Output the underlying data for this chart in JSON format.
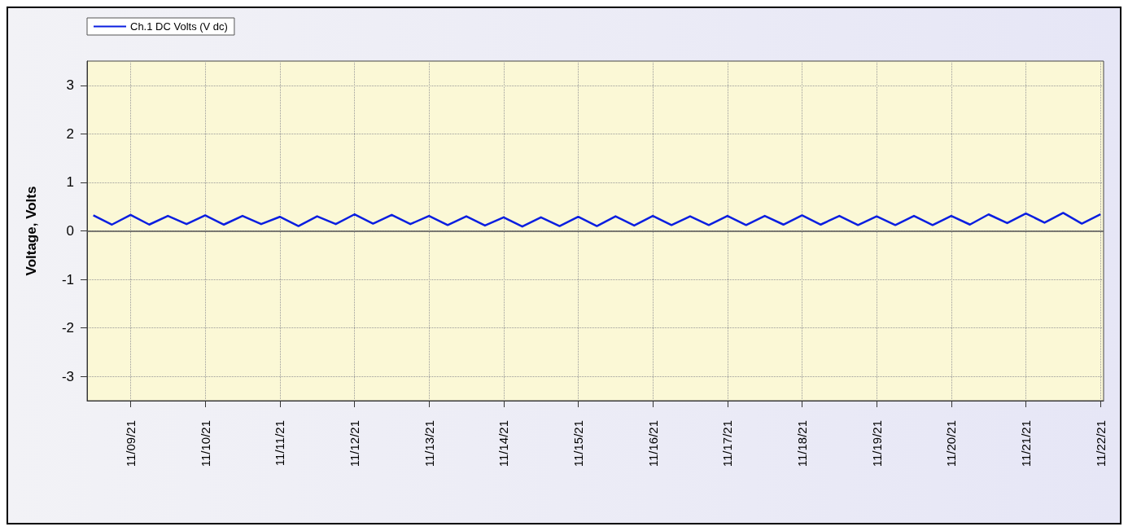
{
  "chart_data": {
    "type": "line",
    "ylabel": "Voltage, Volts",
    "x": [
      "--11-08T12:00",
      "--11-08T18:00",
      "--11-09T00:00",
      "--11-09T06:00",
      "--11-09T12:00",
      "--11-09T18:00",
      "--11-10T00:00",
      "--11-10T06:00",
      "--11-10T12:00",
      "--11-10T18:00",
      "--11-11T00:00",
      "--11-11T06:00",
      "--11-11T12:00",
      "--11-11T18:00",
      "--11-12T00:00",
      "--11-12T06:00",
      "--11-12T12:00",
      "--11-12T18:00",
      "--11-13T00:00",
      "--11-13T06:00",
      "--11-13T12:00",
      "--11-13T18:00",
      "--11-14T00:00",
      "--11-14T06:00",
      "--11-14T12:00",
      "--11-14T18:00",
      "--11-15T00:00",
      "--11-15T06:00",
      "--11-15T12:00",
      "--11-15T18:00",
      "--11-16T00:00",
      "--11-16T06:00",
      "--11-16T12:00",
      "--11-16T18:00",
      "--11-17T00:00",
      "--11-17T06:00",
      "--11-17T12:00",
      "--11-17T18:00",
      "--11-18T00:00",
      "--11-18T06:00",
      "--11-18T12:00",
      "--11-18T18:00",
      "--11-19T00:00",
      "--11-19T06:00",
      "--11-19T12:00",
      "--11-19T18:00",
      "--11-20T00:00",
      "--11-20T06:00",
      "--11-20T12:00",
      "--11-20T18:00",
      "--11-21T00:00",
      "--11-21T06:00",
      "--11-21T12:00",
      "--11-21T18:00",
      "--11-22T00:00"
    ],
    "series": [
      {
        "name": "Ch.1 DC Volts (V dc)",
        "color": "#0a1ee0",
        "values": [
          0.32,
          0.13,
          0.33,
          0.13,
          0.31,
          0.14,
          0.32,
          0.13,
          0.31,
          0.14,
          0.29,
          0.1,
          0.3,
          0.14,
          0.34,
          0.15,
          0.33,
          0.14,
          0.31,
          0.12,
          0.3,
          0.11,
          0.28,
          0.09,
          0.28,
          0.1,
          0.29,
          0.1,
          0.3,
          0.11,
          0.31,
          0.12,
          0.3,
          0.12,
          0.31,
          0.12,
          0.31,
          0.13,
          0.32,
          0.13,
          0.31,
          0.12,
          0.3,
          0.12,
          0.31,
          0.12,
          0.31,
          0.13,
          0.34,
          0.16,
          0.36,
          0.17,
          0.37,
          0.15,
          0.34
        ]
      }
    ],
    "xlim": [
      "--11-08T10:00",
      "--11-22T01:00"
    ],
    "xticks": [
      {
        "value": "--11-09",
        "label": "11/09/21"
      },
      {
        "value": "--11-10",
        "label": "11/10/21"
      },
      {
        "value": "--11-11",
        "label": "11/11/21"
      },
      {
        "value": "--11-12",
        "label": "11/12/21"
      },
      {
        "value": "--11-13",
        "label": "11/13/21"
      },
      {
        "value": "--11-14",
        "label": "11/14/21"
      },
      {
        "value": "--11-15",
        "label": "11/15/21"
      },
      {
        "value": "--11-16",
        "label": "11/16/21"
      },
      {
        "value": "--11-17",
        "label": "11/17/21"
      },
      {
        "value": "--11-18",
        "label": "11/18/21"
      },
      {
        "value": "--11-19",
        "label": "11/19/21"
      },
      {
        "value": "--11-20",
        "label": "11/20/21"
      },
      {
        "value": "--11-21",
        "label": "11/21/21"
      },
      {
        "value": "--11-22",
        "label": "11/22/21"
      }
    ],
    "ylim": [
      -3.5,
      3.5
    ],
    "yticks": [
      -3,
      -2,
      -1,
      0,
      1,
      2,
      3
    ],
    "ref_lines": [
      {
        "axis": "y",
        "value": 0,
        "color": "#555555"
      }
    ],
    "grid": true,
    "legend": "top left",
    "marker": "none",
    "line_style": "solid"
  }
}
